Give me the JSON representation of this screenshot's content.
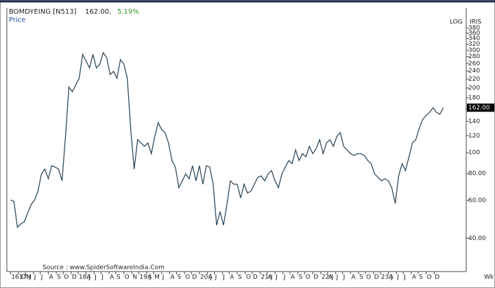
{
  "header": {
    "symbol": "BOMDYEING [N513]",
    "price": "162.00,",
    "change": "5.19%",
    "series_label": "Price",
    "scale_label": "LOG",
    "indicator": "IRIS",
    "period": "Wk",
    "source": "Source : www.SpiderSoftwareIndia.Com"
  },
  "chart_data": {
    "type": "line",
    "log_scale": true,
    "grid": false,
    "x": [
      0,
      3,
      6,
      9,
      12,
      15,
      18,
      21,
      24,
      27,
      30,
      33,
      36,
      39,
      42,
      45,
      48,
      51,
      54,
      57,
      60,
      63,
      66,
      69,
      72,
      75,
      78,
      81,
      84,
      87,
      90,
      93,
      96,
      99,
      102,
      105,
      108,
      111,
      114,
      117,
      120,
      123,
      126,
      129,
      132,
      135,
      138,
      141,
      144,
      147,
      150,
      153,
      156,
      159,
      162,
      165,
      168,
      171,
      174,
      177,
      180,
      183,
      186,
      189,
      192,
      195,
      198,
      201,
      204,
      207,
      210,
      213,
      216,
      219,
      222,
      225,
      228,
      231,
      234,
      237,
      240,
      243,
      246,
      249,
      252,
      255,
      258,
      261,
      264,
      267,
      270,
      273,
      276,
      279,
      282,
      285,
      288,
      291,
      294,
      297,
      300,
      303,
      306,
      309,
      312,
      315,
      318,
      321,
      324,
      327,
      330,
      333,
      336,
      339,
      342,
      345,
      348,
      351,
      354,
      357,
      360,
      363,
      366,
      369,
      372,
      375,
      378
    ],
    "series": [
      {
        "name": "Price",
        "color": "#2f4a5c",
        "values": [
          60.3,
          59.4,
          45,
          46.7,
          47.7,
          52.5,
          57.3,
          60.3,
          66.3,
          79.7,
          83.9,
          75.7,
          87,
          85.7,
          83.9,
          74,
          119,
          202,
          192,
          207,
          222,
          287,
          267,
          248,
          287,
          248,
          258,
          292,
          277,
          231,
          239,
          222,
          271,
          258,
          222,
          128,
          83.9,
          115,
          111,
          107,
          111,
          99,
          119,
          138,
          128,
          124,
          111,
          92,
          85.7,
          68.8,
          74,
          79.7,
          75.7,
          87,
          74,
          87,
          71.4,
          87,
          85.7,
          71.4,
          46,
          53.2,
          46,
          57.3,
          74,
          71.4,
          71.4,
          61.6,
          71.4,
          64.9,
          66.3,
          71.4,
          76.8,
          78,
          74,
          79.7,
          82.6,
          74,
          68.8,
          79.7,
          85.7,
          92,
          89,
          103,
          92,
          99,
          95.7,
          107,
          99,
          104.5,
          115,
          99,
          111,
          115,
          107,
          119,
          124,
          107,
          103,
          99,
          97,
          99,
          99,
          97,
          92,
          89,
          79.7,
          76.8,
          74,
          75.7,
          74,
          68.8,
          58.1,
          78,
          89,
          82.6,
          95.7,
          111,
          115,
          130,
          143,
          149,
          154,
          162,
          154,
          151,
          162
        ]
      }
    ],
    "last_label": "162.00",
    "xlim": [
      -2,
      398
    ],
    "ylim": [
      28,
      470
    ],
    "yticks": [
      {
        "value": 40,
        "label": "40.00"
      },
      {
        "value": 60,
        "label": "60.00"
      },
      {
        "value": 80,
        "label": "80.00"
      },
      100,
      120,
      140,
      160,
      180,
      200,
      220,
      240,
      260,
      280,
      300,
      320,
      340,
      360,
      380
    ],
    "xticks": [
      {
        "value": 0,
        "label": "16:O"
      },
      {
        "value": 7,
        "label": "17:J"
      },
      {
        "value": 13,
        "label": "M"
      },
      {
        "value": 20,
        "label": "J"
      },
      {
        "value": 26,
        "label": "J"
      },
      {
        "value": 33,
        "label": "A"
      },
      {
        "value": 40,
        "label": "S"
      },
      {
        "value": 46,
        "label": "O"
      },
      {
        "value": 53,
        "label": "D"
      },
      {
        "value": 59,
        "label": "18:J"
      },
      {
        "value": 66,
        "label": "A"
      },
      {
        "value": 73,
        "label": "J"
      },
      {
        "value": 79,
        "label": "J"
      },
      {
        "value": 86,
        "label": "A"
      },
      {
        "value": 92,
        "label": "S"
      },
      {
        "value": 99,
        "label": "O"
      },
      {
        "value": 106,
        "label": "N"
      },
      {
        "value": 112,
        "label": "19:J"
      },
      {
        "value": 119,
        "label": "A"
      },
      {
        "value": 125,
        "label": "M"
      },
      {
        "value": 132,
        "label": "J"
      },
      {
        "value": 139,
        "label": "A"
      },
      {
        "value": 145,
        "label": "S"
      },
      {
        "value": 152,
        "label": "O"
      },
      {
        "value": 158,
        "label": "D"
      },
      {
        "value": 165,
        "label": "20:J"
      },
      {
        "value": 172,
        "label": "A"
      },
      {
        "value": 178,
        "label": "J"
      },
      {
        "value": 185,
        "label": "J"
      },
      {
        "value": 191,
        "label": "A"
      },
      {
        "value": 198,
        "label": "S"
      },
      {
        "value": 205,
        "label": "O"
      },
      {
        "value": 211,
        "label": "D"
      },
      {
        "value": 218,
        "label": "21:J"
      },
      {
        "value": 224,
        "label": "A"
      },
      {
        "value": 231,
        "label": "J"
      },
      {
        "value": 238,
        "label": "J"
      },
      {
        "value": 244,
        "label": "A"
      },
      {
        "value": 251,
        "label": "S"
      },
      {
        "value": 257,
        "label": "O"
      },
      {
        "value": 264,
        "label": "D"
      },
      {
        "value": 271,
        "label": "22:J"
      },
      {
        "value": 277,
        "label": "A"
      },
      {
        "value": 284,
        "label": "J"
      },
      {
        "value": 290,
        "label": "J"
      },
      {
        "value": 297,
        "label": "A"
      },
      {
        "value": 304,
        "label": "S"
      },
      {
        "value": 310,
        "label": "O"
      },
      {
        "value": 317,
        "label": "D"
      },
      {
        "value": 323,
        "label": "23:J"
      },
      {
        "value": 330,
        "label": "A"
      },
      {
        "value": 337,
        "label": "J"
      },
      {
        "value": 343,
        "label": "J"
      },
      {
        "value": 350,
        "label": "A"
      },
      {
        "value": 356,
        "label": "S"
      },
      {
        "value": 363,
        "label": "O"
      },
      {
        "value": 370,
        "label": "D"
      }
    ]
  }
}
